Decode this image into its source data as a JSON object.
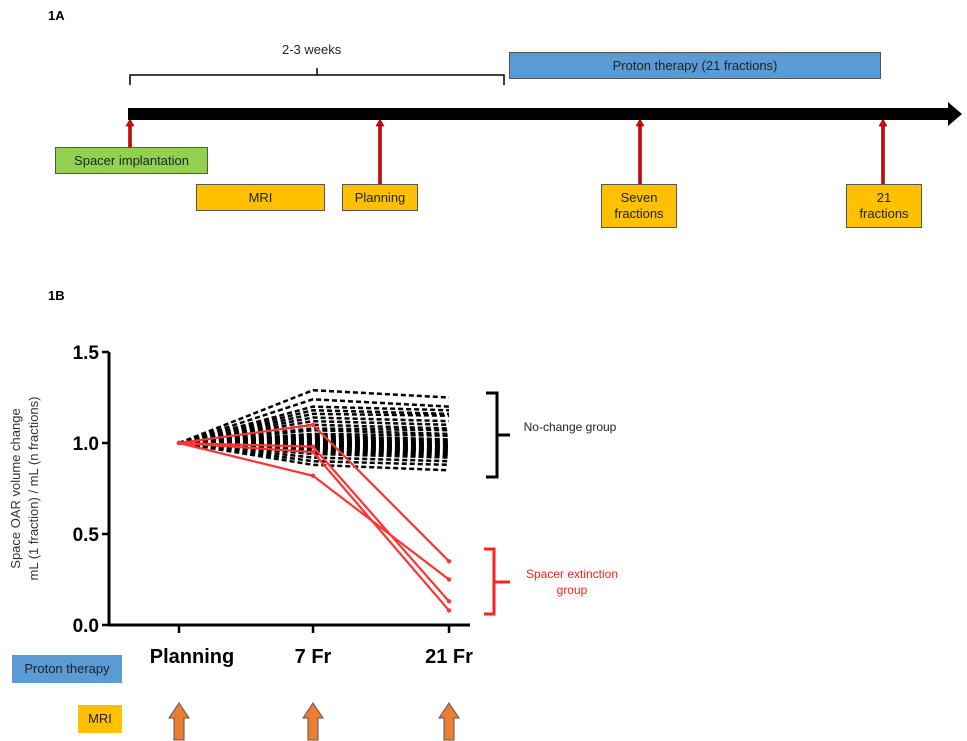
{
  "panel_a": {
    "label": "1A",
    "interval_label": "2-3 weeks",
    "proton_bar": "Proton therapy (21 fractions)",
    "events": [
      {
        "label": "Spacer implantation",
        "color": "#92d050"
      },
      {
        "label": "MRI",
        "color": "#ffc000"
      },
      {
        "label": "Planning",
        "color": "#ffc000"
      },
      {
        "label": "Seven fractions",
        "color": "#ffc000"
      },
      {
        "label": "21 fractions",
        "color": "#ffc000"
      }
    ]
  },
  "panel_b": {
    "label": "1B",
    "legend_proton": "Proton therapy",
    "legend_mri": "MRI",
    "group_no_change": "No-change group",
    "group_extinction": "Spacer extinction group"
  },
  "chart_data": {
    "type": "line",
    "categories": [
      "Planning",
      "7 Fr",
      "21 Fr"
    ],
    "ylabel": "Space OAR volume change mL (1 fraction) / mL (n fractions)",
    "ylim": [
      0,
      1.5
    ],
    "yticks": [
      "0.0",
      "0.5",
      "1.0",
      "1.5"
    ],
    "colors": {
      "no_change": "#000000",
      "extinction": "#ff3333"
    },
    "no_change_series": [
      [
        1,
        1.29,
        1.25
      ],
      [
        1,
        1.24,
        1.2
      ],
      [
        1,
        1.2,
        1.18
      ],
      [
        1,
        1.18,
        1.16
      ],
      [
        1,
        1.16,
        1.15
      ],
      [
        1,
        1.14,
        1.12
      ],
      [
        1,
        1.12,
        1.1
      ],
      [
        1,
        1.1,
        1.08
      ],
      [
        1,
        1.08,
        1.07
      ],
      [
        1,
        1.07,
        1.05
      ],
      [
        1,
        1.05,
        1.04
      ],
      [
        1,
        1.04,
        1.02
      ],
      [
        1,
        1.03,
        1.01
      ],
      [
        1,
        1.02,
        1.0
      ],
      [
        1,
        1.01,
        0.99
      ],
      [
        1,
        1.0,
        0.98
      ],
      [
        1,
        0.99,
        0.97
      ],
      [
        1,
        0.98,
        0.96
      ],
      [
        1,
        0.97,
        0.95
      ],
      [
        1,
        0.96,
        0.94
      ],
      [
        1,
        0.95,
        0.93
      ],
      [
        1,
        0.94,
        0.92
      ],
      [
        1,
        0.92,
        0.9
      ],
      [
        1,
        0.9,
        0.88
      ],
      [
        1,
        0.88,
        0.85
      ]
    ],
    "extinction_series": [
      [
        1,
        1.1,
        0.35
      ],
      [
        1,
        0.82,
        0.25
      ],
      [
        1,
        0.98,
        0.13
      ],
      [
        1,
        0.95,
        0.08
      ]
    ]
  }
}
